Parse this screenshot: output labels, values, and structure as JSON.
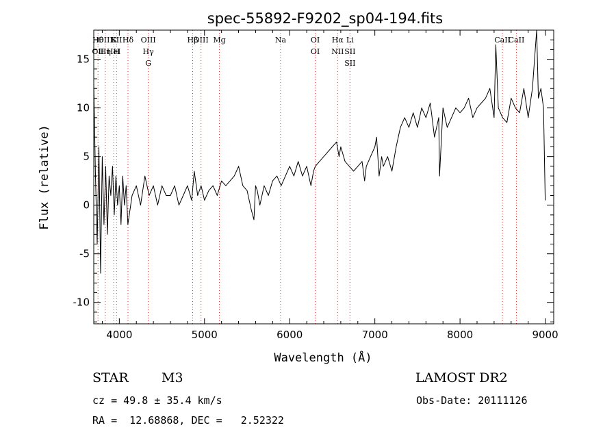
{
  "chart_data": {
    "type": "line",
    "title": "spec-55892-F9202_sp04-194.fits",
    "xlabel": "Wavelength (Å)",
    "ylabel": "Flux (relative)",
    "xlim": [
      3700,
      9100
    ],
    "ylim": [
      -12.2,
      18.0
    ],
    "grid": false,
    "xticks": [
      4000,
      5000,
      6000,
      7000,
      8000,
      9000
    ],
    "yticks": [
      -10,
      -5,
      0,
      5,
      10,
      15
    ],
    "series": [
      {
        "color": "#000000",
        "x": [
          3700,
          3720,
          3740,
          3760,
          3780,
          3800,
          3820,
          3840,
          3860,
          3880,
          3900,
          3920,
          3940,
          3960,
          3980,
          4000,
          4020,
          4040,
          4060,
          4080,
          4100,
          4150,
          4200,
          4250,
          4300,
          4350,
          4400,
          4450,
          4500,
          4550,
          4600,
          4650,
          4700,
          4750,
          4800,
          4850,
          4880,
          4920,
          4960,
          5000,
          5050,
          5100,
          5150,
          5200,
          5250,
          5300,
          5350,
          5400,
          5450,
          5500,
          5550,
          5580,
          5600,
          5620,
          5650,
          5700,
          5750,
          5800,
          5850,
          5900,
          5950,
          6000,
          6050,
          6100,
          6150,
          6200,
          6250,
          6280,
          6300,
          6350,
          6400,
          6450,
          6500,
          6550,
          6580,
          6600,
          6650,
          6700,
          6750,
          6800,
          6850,
          6880,
          6900,
          6950,
          7000,
          7020,
          7050,
          7080,
          7100,
          7150,
          7200,
          7250,
          7300,
          7350,
          7400,
          7450,
          7500,
          7550,
          7600,
          7650,
          7700,
          7750,
          7760,
          7800,
          7850,
          7900,
          7950,
          8000,
          8050,
          8100,
          8150,
          8200,
          8250,
          8300,
          8350,
          8400,
          8420,
          8450,
          8500,
          8550,
          8600,
          8650,
          8700,
          8750,
          8800,
          8850,
          8900,
          8920,
          8950,
          8980,
          9000
        ],
        "y": [
          12.5,
          3,
          -4,
          6,
          -7,
          5,
          -2,
          4,
          -3,
          3,
          1,
          4,
          -1,
          3,
          0,
          2,
          -2,
          3,
          0,
          2,
          -2,
          1,
          2,
          0,
          3,
          1,
          2,
          0,
          2,
          1,
          1,
          2,
          0,
          1,
          2,
          0.5,
          3.5,
          1,
          2,
          0.5,
          1.5,
          2,
          1,
          2.5,
          2,
          2.5,
          3,
          4,
          2,
          1.5,
          -0.5,
          -1.5,
          2,
          1.5,
          0,
          2,
          1,
          2.5,
          3,
          2,
          3,
          4,
          3,
          4.5,
          3,
          4,
          2,
          3.5,
          4,
          4.5,
          5,
          5.5,
          6,
          6.5,
          5,
          6,
          4.5,
          4,
          3.5,
          4,
          4.5,
          2.5,
          4,
          5,
          6,
          7,
          3,
          5,
          4,
          5,
          3.5,
          6,
          8,
          9,
          8,
          9.5,
          8,
          10,
          9,
          10.5,
          7,
          9,
          3,
          10,
          8,
          9,
          10,
          9.5,
          10,
          11,
          9,
          10,
          10.5,
          11,
          12,
          9,
          16.5,
          10,
          9,
          8.5,
          11,
          10,
          9.5,
          12,
          9,
          12,
          18,
          11,
          12,
          10,
          0.5
        ]
      }
    ],
    "lines": [
      {
        "labels": [
          "Hθ",
          "OII"
        ],
        "x": 3750,
        "color": "#cc3333"
      },
      {
        "labels": [
          "OIII",
          "Hη"
        ],
        "x": 3835,
        "color": "#cc3333"
      },
      {
        "labels": [
          "K",
          "HeI"
        ],
        "x": 3934,
        "color": "#777777"
      },
      {
        "labels": [
          "SII",
          "H"
        ],
        "x": 3968,
        "color": "#777777"
      },
      {
        "labels": [
          "Hδ"
        ],
        "x": 4102,
        "color": "#cc3333"
      },
      {
        "labels": [
          "OIII",
          "Hγ",
          "G"
        ],
        "x": 4340,
        "color": "#cc3333"
      },
      {
        "labels": [
          "Hβ"
        ],
        "x": 4861,
        "color": "#cc3333"
      },
      {
        "labels": [
          "OIII"
        ],
        "x": 4959,
        "color": "#cc3333"
      },
      {
        "labels": [
          "Mg"
        ],
        "x": 5175,
        "color": "#cc3333"
      },
      {
        "labels": [
          "Na"
        ],
        "x": 5893,
        "color": "#777777"
      },
      {
        "labels": [
          "OI",
          "OI"
        ],
        "x": 6300,
        "color": "#cc3333"
      },
      {
        "labels": [
          "Hα",
          "NII"
        ],
        "x": 6563,
        "color": "#cc3333"
      },
      {
        "labels": [
          "Li",
          "SII",
          "SII"
        ],
        "x": 6708,
        "color": "#cc3333"
      },
      {
        "labels": [
          "CaII"
        ],
        "x": 8498,
        "color": "#cc3333"
      },
      {
        "labels": [
          "CaII"
        ],
        "x": 8662,
        "color": "#cc3333"
      }
    ]
  },
  "info": {
    "class_label": "STAR",
    "subclass": "M3",
    "survey": "LAMOST DR2",
    "cz_line": "cz = 49.8 ± 35.4 km/s",
    "obs_date": "Obs-Date: 20111126",
    "coords": "RA =  12.68868, DEC =   2.52322"
  }
}
